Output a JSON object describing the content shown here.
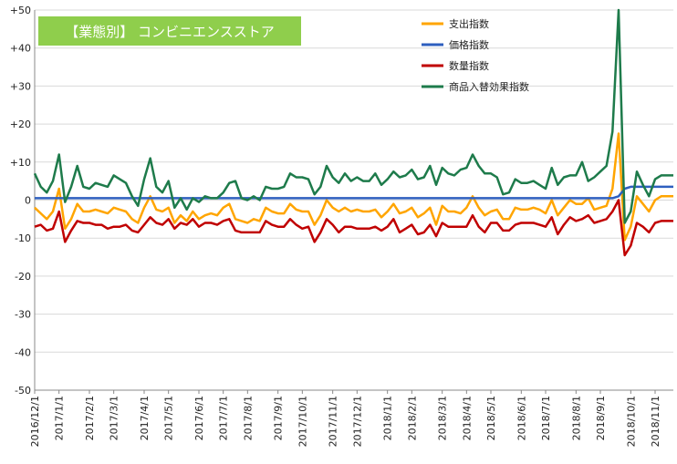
{
  "chart_data": {
    "type": "line",
    "title": "【業態別】 コンビニエンスストア",
    "categories": [
      "2016/12/1",
      null,
      null,
      null,
      "2017/1/1",
      null,
      null,
      null,
      null,
      "2017/2/1",
      null,
      null,
      null,
      "2017/3/1",
      null,
      null,
      null,
      null,
      "2017/4/1",
      null,
      null,
      null,
      "2017/5/1",
      null,
      null,
      null,
      null,
      "2017/6/1",
      null,
      null,
      null,
      "2017/7/1",
      null,
      null,
      null,
      "2017/8/1",
      null,
      null,
      null,
      null,
      "2017/9/1",
      null,
      null,
      null,
      "2017/10/1",
      null,
      null,
      null,
      null,
      "2017/11/1",
      null,
      null,
      null,
      "2017/12/1",
      null,
      null,
      null,
      null,
      "2018/1/1",
      null,
      null,
      null,
      "2018/2/1",
      null,
      null,
      null,
      null,
      "2018/3/1",
      null,
      null,
      null,
      "2018/4/1",
      null,
      null,
      null,
      "2018/5/1",
      null,
      null,
      null,
      null,
      "2018/6/1",
      null,
      null,
      null,
      "2018/7/1",
      null,
      null,
      null,
      null,
      "2018/8/1",
      null,
      null,
      null,
      "2018/9/1",
      null,
      null,
      null,
      null,
      "2018/10/1",
      null,
      null,
      null,
      "2018/11/1",
      null,
      null,
      null
    ],
    "series": [
      {
        "name": "支出指数",
        "color": "#ffa500",
        "values": [
          -2,
          -3.5,
          -5,
          -3,
          3,
          -7.5,
          -5,
          -1,
          -3,
          -3,
          -2.5,
          -3,
          -3.5,
          -2,
          -2.5,
          -3,
          -5,
          -6,
          -2,
          1,
          -2.5,
          -3,
          -2,
          -6,
          -4,
          -5.5,
          -3,
          -5,
          -4,
          -3.5,
          -4,
          -2,
          -1,
          -5,
          -5.5,
          -6,
          -5,
          -5.5,
          -2,
          -3,
          -3.5,
          -3.5,
          -1,
          -2.5,
          -3,
          -3,
          -6.5,
          -4,
          0,
          -2,
          -3,
          -2,
          -3,
          -2.5,
          -3,
          -3,
          -2.5,
          -4.5,
          -3,
          -1,
          -3.5,
          -3,
          -2,
          -4.5,
          -3.5,
          -2,
          -6.5,
          -1.5,
          -3,
          -3,
          -3.5,
          -2,
          1,
          -2,
          -4,
          -3,
          -2.5,
          -5,
          -5,
          -2,
          -2.5,
          -2.5,
          -2,
          -2.5,
          -3.5,
          0,
          -4,
          -2,
          0,
          -1,
          -1,
          0.5,
          -2.5,
          -2,
          -1.5,
          3,
          17.5,
          -10.5,
          -7,
          1,
          -1,
          -3,
          0,
          1,
          1,
          1
        ]
      },
      {
        "name": "価格指数",
        "color": "#2e5fbf",
        "values": [
          0.5,
          0.5,
          0.5,
          0.5,
          0.5,
          0.5,
          0.5,
          0.5,
          0.5,
          0.5,
          0.5,
          0.5,
          0.5,
          0.5,
          0.5,
          0.5,
          0.5,
          0.5,
          0.5,
          0.5,
          0.5,
          0.5,
          0.5,
          0.5,
          0.5,
          0.5,
          0.5,
          0.5,
          0.5,
          0.5,
          0.5,
          0.5,
          0.5,
          0.5,
          0.5,
          0.5,
          0.5,
          0.5,
          0.5,
          0.5,
          0.5,
          0.5,
          0.5,
          0.5,
          0.5,
          0.5,
          0.5,
          0.5,
          0.5,
          0.5,
          0.5,
          0.5,
          0.5,
          0.5,
          0.5,
          0.5,
          0.5,
          0.5,
          0.5,
          0.5,
          0.5,
          0.5,
          0.5,
          0.5,
          0.5,
          0.5,
          0.5,
          0.5,
          0.5,
          0.5,
          0.5,
          0.5,
          0.5,
          0.5,
          0.5,
          0.5,
          0.5,
          0.5,
          0.5,
          0.5,
          0.5,
          0.5,
          0.5,
          0.5,
          0.5,
          0.5,
          0.5,
          0.5,
          0.5,
          0.5,
          0.5,
          0.5,
          0.5,
          0.5,
          0.5,
          0.5,
          1,
          3,
          3.5,
          3.5,
          3.5,
          3.5,
          3.5,
          3.5,
          3.5,
          3.5
        ]
      },
      {
        "name": "数量指数",
        "color": "#c00000",
        "values": [
          -7,
          -6.5,
          -8,
          -7.5,
          -3,
          -11,
          -8,
          -5.5,
          -6,
          -6,
          -6.5,
          -6.5,
          -7.5,
          -7,
          -7,
          -6.5,
          -8,
          -8.5,
          -6.5,
          -4.5,
          -6,
          -6.5,
          -5,
          -7.5,
          -6,
          -6.5,
          -5,
          -7,
          -6,
          -6,
          -6.5,
          -5.5,
          -5,
          -8,
          -8.5,
          -8.5,
          -8.5,
          -8.5,
          -5.5,
          -6.5,
          -7,
          -7,
          -5,
          -6.5,
          -7.5,
          -7,
          -11,
          -8.5,
          -5,
          -6.5,
          -8.5,
          -7,
          -7,
          -7.5,
          -7.5,
          -7.5,
          -7,
          -8,
          -7,
          -5,
          -8.5,
          -7.5,
          -6.5,
          -9,
          -8.5,
          -6.5,
          -9.5,
          -6,
          -7,
          -7,
          -7,
          -7,
          -4,
          -7,
          -8.5,
          -6,
          -6,
          -8,
          -8,
          -6.5,
          -6,
          -6,
          -6,
          -6.5,
          -7,
          -4.5,
          -9,
          -6.5,
          -4.5,
          -5.5,
          -5,
          -4,
          -6,
          -5.5,
          -5,
          -3,
          0,
          -14.5,
          -12,
          -6,
          -7,
          -8.5,
          -6,
          -5.5,
          -5.5,
          -5.5
        ]
      },
      {
        "name": "商品入替効果指数",
        "color": "#1e7b4b",
        "values": [
          7,
          3.5,
          2,
          5,
          12,
          -0.5,
          3.5,
          9,
          3.5,
          3,
          4.5,
          4,
          3.5,
          6.5,
          5.5,
          4.5,
          1,
          -1.5,
          5.5,
          11,
          3.5,
          2,
          5,
          -2,
          0.5,
          -2.5,
          0.5,
          -0.5,
          1,
          0.5,
          0.5,
          2,
          4.5,
          5,
          0.5,
          0,
          1,
          0,
          3.5,
          3,
          3,
          3.5,
          7,
          6,
          6,
          5.5,
          1.5,
          3.5,
          9,
          6,
          4.5,
          7,
          5,
          6,
          5,
          5,
          7,
          4,
          5.5,
          7.5,
          6,
          6.5,
          8,
          5.5,
          6,
          9,
          4,
          8.5,
          7,
          6.5,
          8,
          8.5,
          12,
          9,
          7,
          7,
          6,
          1.5,
          2,
          5.5,
          4.5,
          4.5,
          5,
          4,
          3,
          8.5,
          4,
          6,
          6.5,
          6.5,
          10,
          5,
          6,
          7.5,
          9,
          18,
          50,
          -6,
          -3,
          7.5,
          4,
          1,
          5.5,
          6.5,
          6.5,
          6.5
        ]
      }
    ],
    "ylim": [
      -50,
      50
    ],
    "yticks": [
      {
        "value": 50,
        "label": "+50"
      },
      {
        "value": 40,
        "label": "+40"
      },
      {
        "value": 30,
        "label": "+30"
      },
      {
        "value": 20,
        "label": "+20"
      },
      {
        "value": 10,
        "label": "+10"
      },
      0,
      -10,
      -20,
      -30,
      -40,
      -50
    ],
    "grid": true,
    "legend": "upper right"
  }
}
